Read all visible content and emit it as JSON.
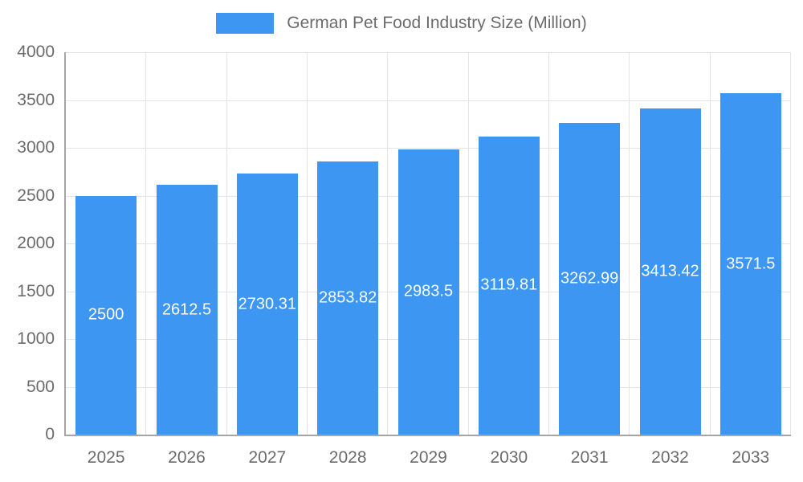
{
  "legend": {
    "label": "German Pet Food Industry Size (Million)"
  },
  "chart_data": {
    "type": "bar",
    "title": "German Pet Food Industry Size (Million)",
    "categories": [
      "2025",
      "2026",
      "2027",
      "2028",
      "2029",
      "2030",
      "2031",
      "2032",
      "2033"
    ],
    "values": [
      2500,
      2612.5,
      2730.31,
      2853.82,
      2983.5,
      3119.81,
      3262.99,
      3413.42,
      3571.5
    ],
    "value_labels": [
      "2500",
      "2612.5",
      "2730.31",
      "2853.82",
      "2983.5",
      "3119.81",
      "3262.99",
      "3413.42",
      "3571.5"
    ],
    "xlabel": "",
    "ylabel": "",
    "ylim": [
      0,
      4000
    ],
    "yticks": [
      0,
      500,
      1000,
      1500,
      2000,
      2500,
      3000,
      3500,
      4000
    ],
    "grid": true,
    "legend_position": "top",
    "bar_color": "#3d96f2",
    "bar_label_color": "#ffffff",
    "axis_text_color": "#6b6b6b",
    "grid_color": "#e4e4e4"
  }
}
